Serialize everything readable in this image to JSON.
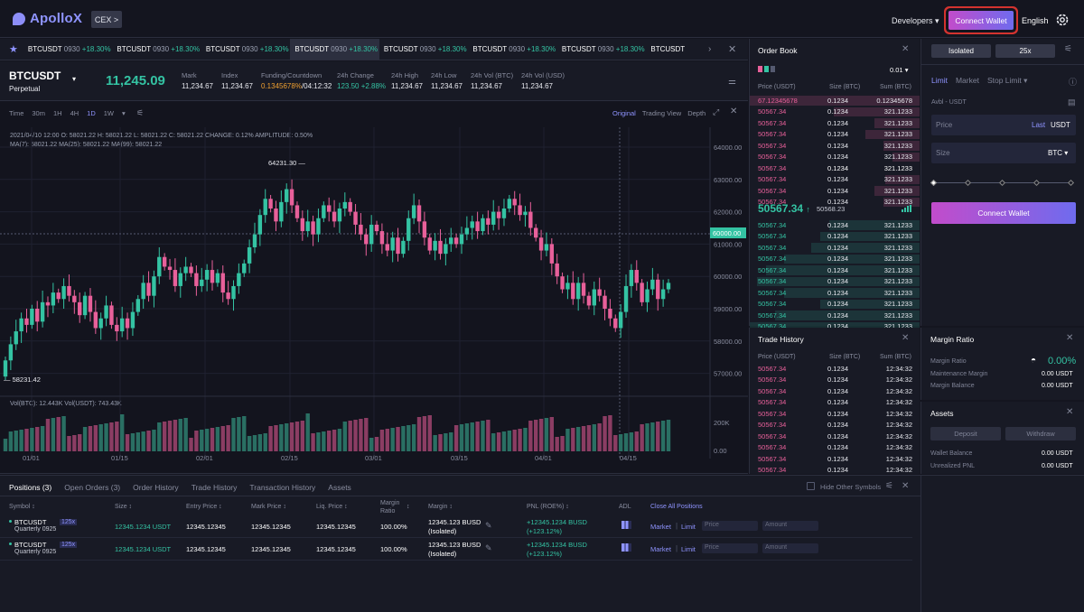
{
  "topbar": {
    "logo": "ApolloX",
    "cex": "CEX >",
    "developers": "Developers",
    "connect_wallet": "Connect Wallet",
    "language": "English"
  },
  "ticker": [
    {
      "sym": "BTCUSDT",
      "date": "0930",
      "chg": "+18.30%"
    },
    {
      "sym": "BTCUSDT",
      "date": "0930",
      "chg": "+18.30%"
    },
    {
      "sym": "BTCUSDT",
      "date": "0930",
      "chg": "+18.30%"
    },
    {
      "sym": "BTCUSDT",
      "date": "0930",
      "chg": "+18.30%"
    },
    {
      "sym": "BTCUSDT",
      "date": "0930",
      "chg": "+18.30%"
    },
    {
      "sym": "BTCUSDT",
      "date": "0930",
      "chg": "+18.30%"
    },
    {
      "sym": "BTCUSDT",
      "date": "0930",
      "chg": "+18.30%"
    },
    {
      "sym": "BTCUSDT",
      "date": "",
      "chg": ""
    }
  ],
  "header": {
    "symbol": "BTCUSDT",
    "type": "Perpetual",
    "price": "11,245.09",
    "stats": [
      {
        "label": "Mark",
        "value": "11,234.67"
      },
      {
        "label": "Index",
        "value": "11,234.67"
      },
      {
        "label": "Funding/Countdown",
        "value": "0.1345678%",
        "value2": "/04:12:32"
      },
      {
        "label": "24h Change",
        "value": "123.50 +2.88%"
      },
      {
        "label": "24h High",
        "value": "11,234.67"
      },
      {
        "label": "24h Low",
        "value": "11,234.67"
      },
      {
        "label": "24h Vol (BTC)",
        "value": "11,234.67"
      },
      {
        "label": "24h Vol (USD)",
        "value": "11,234.67"
      }
    ]
  },
  "chart_toolbar": {
    "intervals": [
      "Time",
      "30m",
      "1H",
      "4H",
      "1D",
      "1W"
    ],
    "views": [
      "Original",
      "Trading View",
      "Depth"
    ]
  },
  "chart_legend": {
    "ohlc": "2021/04/10 12:00 O: 58021.22 H: 58021.22 L: 58021.22 C: 58021.22 CHANGE: 0.12% AMPLITUDE: 0.50%",
    "ma": "MA(7): 58021.22 MA(25): 58021.22 MA(99): 58021.22",
    "vol": "Vol(BTC): 12.443K Vol(USDT): 743.43K"
  },
  "chart_data": {
    "type": "candlestick",
    "y_ticks": [
      "64000.00",
      "63000.00",
      "62000.00",
      "61000.00",
      "60000.00",
      "59000.00",
      "58000.00",
      "57000.00"
    ],
    "crosshair_price": "60000.00",
    "high_label": "64231.30",
    "low_label": "58231.42",
    "x_ticks": [
      "01/01",
      "01/15",
      "02/01",
      "02/15",
      "03/01",
      "03/15",
      "04/01",
      "04/15"
    ],
    "vol_ticks": [
      "200K",
      "0.00"
    ]
  },
  "orderbook": {
    "title": "Order Book",
    "precision": "0.01",
    "cols": [
      "Price (USDT)",
      "Size (BTC)",
      "Sum (BTC)"
    ],
    "asks": [
      [
        "67.12345678",
        "0.1234",
        "0.12345678"
      ],
      [
        "50567.34",
        "0.1234",
        "321.1233"
      ],
      [
        "50567.34",
        "0.1234",
        "321.1233"
      ],
      [
        "50567.34",
        "0.1234",
        "321.1233"
      ],
      [
        "50567.34",
        "0.1234",
        "321.1233"
      ],
      [
        "50567.34",
        "0.1234",
        "321.1233"
      ],
      [
        "50567.34",
        "0.1234",
        "321.1233"
      ],
      [
        "50567.34",
        "0.1234",
        "321.1233"
      ],
      [
        "50567.34",
        "0.1234",
        "321.1233"
      ],
      [
        "50567.34",
        "0.1234",
        "321.1233"
      ]
    ],
    "last": "50567.34",
    "last_sub": "50568.23",
    "bids": [
      [
        "50567.34",
        "0.1234",
        "321.1233"
      ],
      [
        "50567.34",
        "0.1234",
        "321.1233"
      ],
      [
        "50567.34",
        "0.1234",
        "321.1233"
      ],
      [
        "50567.34",
        "0.1234",
        "321.1233"
      ],
      [
        "50567.34",
        "0.1234",
        "321.1233"
      ],
      [
        "50567.34",
        "0.1234",
        "321.1233"
      ],
      [
        "50567.34",
        "0.1234",
        "321.1233"
      ],
      [
        "50567.34",
        "0.1234",
        "321.1233"
      ],
      [
        "50567.34",
        "0.1234",
        "321.1233"
      ],
      [
        "50567.34",
        "0.1234",
        "321.1233"
      ]
    ]
  },
  "trade_history": {
    "title": "Trade History",
    "cols": [
      "Price (USDT)",
      "Size (BTC)",
      "Sum (BTC)"
    ],
    "rows": [
      [
        "50567.34",
        "0.1234",
        "12:34:32"
      ],
      [
        "50567.34",
        "0.1234",
        "12:34:32"
      ],
      [
        "50567.34",
        "0.1234",
        "12:34:32"
      ],
      [
        "50567.34",
        "0.1234",
        "12:34:32"
      ],
      [
        "50567.34",
        "0.1234",
        "12:34:32"
      ],
      [
        "50567.34",
        "0.1234",
        "12:34:32"
      ],
      [
        "50567.34",
        "0.1234",
        "12:34:32"
      ],
      [
        "50567.34",
        "0.1234",
        "12:34:32"
      ],
      [
        "50567.34",
        "0.1234",
        "12:34:32"
      ],
      [
        "50567.34",
        "0.1234",
        "12:34:32"
      ]
    ]
  },
  "trade_panel": {
    "margin_mode": "Isolated",
    "leverage": "25x",
    "order_types": [
      "Limit",
      "Market",
      "Stop Limit"
    ],
    "avbl": "Avbl - USDT",
    "price_placeholder": "Price",
    "price_last": "Last",
    "price_unit": "USDT",
    "size_placeholder": "Size",
    "size_unit": "BTC",
    "slider_pct": 0,
    "connect_wallet": "Connect Wallet"
  },
  "margin_ratio": {
    "title": "Margin Ratio",
    "rows": [
      {
        "label": "Margin Ratio",
        "value": "0.00%"
      },
      {
        "label": "Maintenance Margin",
        "value": "0.00 USDT"
      },
      {
        "label": "Margin Balance",
        "value": "0.00 USDT"
      }
    ]
  },
  "assets": {
    "title": "Assets",
    "deposit": "Deposit",
    "withdraw": "Withdraw",
    "rows": [
      {
        "label": "Wallet Balance",
        "value": "0.00 USDT"
      },
      {
        "label": "Unrealized PNL",
        "value": "0.00 USDT"
      }
    ]
  },
  "positions": {
    "tabs": [
      "Positions (3)",
      "Open Orders (3)",
      "Order History",
      "Trade History",
      "Transaction History",
      "Assets"
    ],
    "hide_other": "Hide Other Symbols",
    "cols": [
      "Symbol ↕",
      "Size ↕",
      "Entry Price ↕",
      "Mark Price ↕",
      "Liq. Price ↕",
      "Margin Ratio",
      "Margin ↕",
      "PNL (ROE%) ↕",
      "ADL",
      "Close All Positions"
    ],
    "rows": [
      {
        "sym": "BTCUSDT",
        "sub": "Quarterly 0925",
        "lev": "125x",
        "size": "12345.1234 USDT",
        "entry": "12345.12345",
        "mark": "12345.12345",
        "liq": "12345.12345",
        "ratio": "100.00%",
        "margin": "12345.123 BUSD",
        "margin2": "(Isolated)",
        "pnl": "+12345.1234 BUSD",
        "pnl2": "(+123.12%)",
        "market": "Market",
        "limit": "Limit",
        "price": "Price",
        "amount": "Amount"
      },
      {
        "sym": "BTCUSDT",
        "sub": "Quarterly 0925",
        "lev": "125x",
        "size": "12345.1234 USDT",
        "entry": "12345.12345",
        "mark": "12345.12345",
        "liq": "12345.12345",
        "ratio": "100.00%",
        "margin": "12345.123 BUSD",
        "margin2": "(Isolated)",
        "pnl": "+12345.1234 BUSD",
        "pnl2": "(+123.12%)",
        "market": "Market",
        "limit": "Limit",
        "price": "Price",
        "amount": "Amount"
      }
    ]
  }
}
